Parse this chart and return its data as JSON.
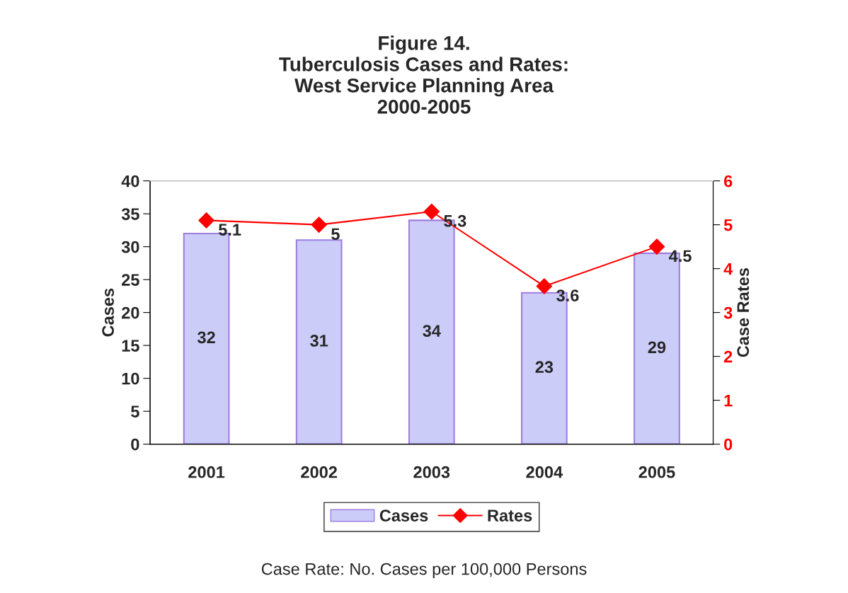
{
  "chart_data": {
    "type": "bar",
    "title": "Figure 14.\nTuberculosis Cases and Rates:\nWest Service Planning Area\n2000-2005",
    "categories": [
      "2001",
      "2002",
      "2003",
      "2004",
      "2005"
    ],
    "series": [
      {
        "name": "Cases",
        "color": "#ccccf8",
        "values": [
          32,
          31,
          34,
          23,
          29
        ]
      },
      {
        "name": "Rates",
        "type": "line",
        "axis": "y2",
        "color": "#ff0000",
        "marker": "diamond",
        "values": [
          5.1,
          5,
          5.3,
          3.6,
          4.5
        ]
      }
    ],
    "ylabel": "Cases",
    "y2label": "Case Rates",
    "ylim": [
      0,
      40
    ],
    "yticks": [
      0,
      5,
      10,
      15,
      20,
      25,
      30,
      35,
      40
    ],
    "y2lim": [
      0,
      6
    ],
    "y2ticks": [
      0,
      1,
      2,
      3,
      4,
      5,
      6
    ],
    "data_labels": true,
    "grid": false,
    "legend": "bottom",
    "annotations": [
      "Case Rate: No. Cases per 100,000 Persons"
    ]
  }
}
